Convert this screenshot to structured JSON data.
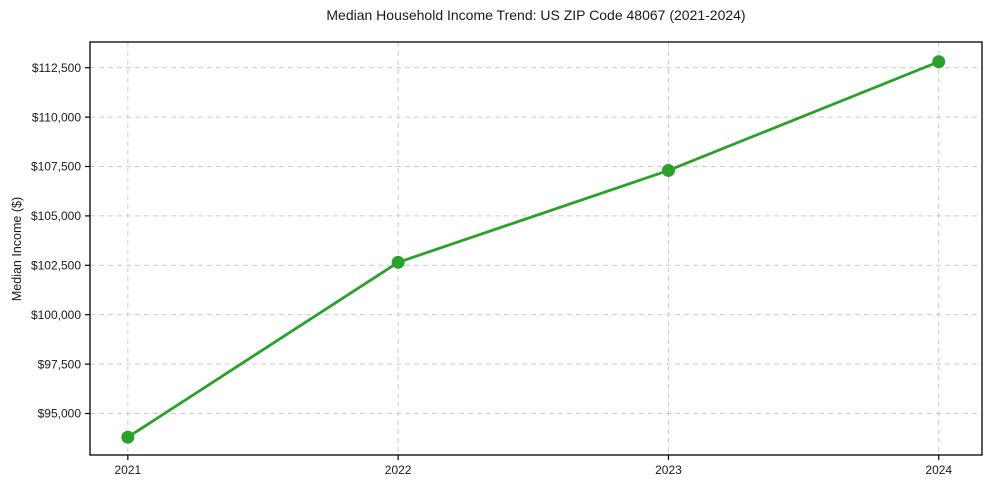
{
  "chart_data": {
    "type": "line",
    "title": "Median Household Income Trend: US ZIP Code 48067 (2021-2024)",
    "xlabel": "",
    "ylabel": "Median Income ($)",
    "x": [
      2021,
      2022,
      2023,
      2024
    ],
    "values": [
      93800,
      102650,
      107300,
      112800
    ],
    "xtick_labels": [
      "2021",
      "2022",
      "2023",
      "2024"
    ],
    "ytick_values": [
      95000,
      97500,
      100000,
      102500,
      105000,
      107500,
      110000,
      112500
    ],
    "ytick_labels": [
      "$95,000",
      "$97,500",
      "$100,000",
      "$102,500",
      "$105,000",
      "$107,500",
      "$110,000",
      "$112,500"
    ],
    "xlim": [
      2020.86,
      2024.16
    ],
    "ylim": [
      92900,
      113800
    ],
    "grid": true,
    "grid_style": "dashed",
    "legend": false,
    "colors": {
      "line": "#2ca02c",
      "marker": "#2ca02c",
      "grid": "#cccccc",
      "spine": "#000000",
      "text": "#1a1a1a",
      "background": "#ffffff"
    }
  }
}
